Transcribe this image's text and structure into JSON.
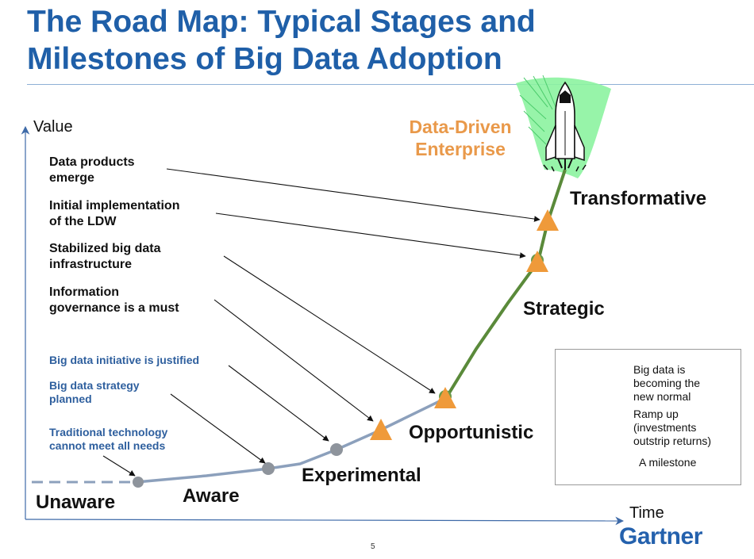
{
  "title": {
    "line1": "The Road Map: Typical Stages and",
    "line2": "Milestones of Big Data Adoption"
  },
  "axes": {
    "y_label": "Value",
    "x_label": "Time"
  },
  "milestones_top": [
    {
      "line1": "Data products",
      "line2": "emerge"
    },
    {
      "line1": "Initial implementation",
      "line2": "of the LDW"
    },
    {
      "line1": "Stabilized big data",
      "line2": "infrastructure"
    },
    {
      "line1": "Information",
      "line2": "governance is a must"
    }
  ],
  "milestones_blue": [
    {
      "line1": "Big data initiative is justified"
    },
    {
      "line1": "Big data strategy",
      "line2": "planned"
    },
    {
      "line1": "Traditional technology",
      "line2": "cannot meet all needs"
    }
  ],
  "stages": {
    "unaware": "Unaware",
    "aware": "Aware",
    "experimental": "Experimental",
    "opportunistic": "Opportunistic",
    "strategic": "Strategic",
    "transformative": "Transformative"
  },
  "destination": {
    "line1": "Data-Driven",
    "line2": "Enterprise"
  },
  "legend": {
    "green": {
      "line1": "Big data is",
      "line2": "becoming the",
      "line3": "new normal"
    },
    "gray": {
      "line1": "Ramp up",
      "line2": "(investments",
      "line3": "outstrip returns)"
    },
    "milestone": "A milestone"
  },
  "colors": {
    "title_blue": "#1f5fa8",
    "green_line": "#5a8a3a",
    "gray_line": "#8ca0bc",
    "milestone_orange": "#ef9a3a",
    "dde_orange": "#e9994a"
  },
  "page_number": "5",
  "brand": "Gartner"
}
